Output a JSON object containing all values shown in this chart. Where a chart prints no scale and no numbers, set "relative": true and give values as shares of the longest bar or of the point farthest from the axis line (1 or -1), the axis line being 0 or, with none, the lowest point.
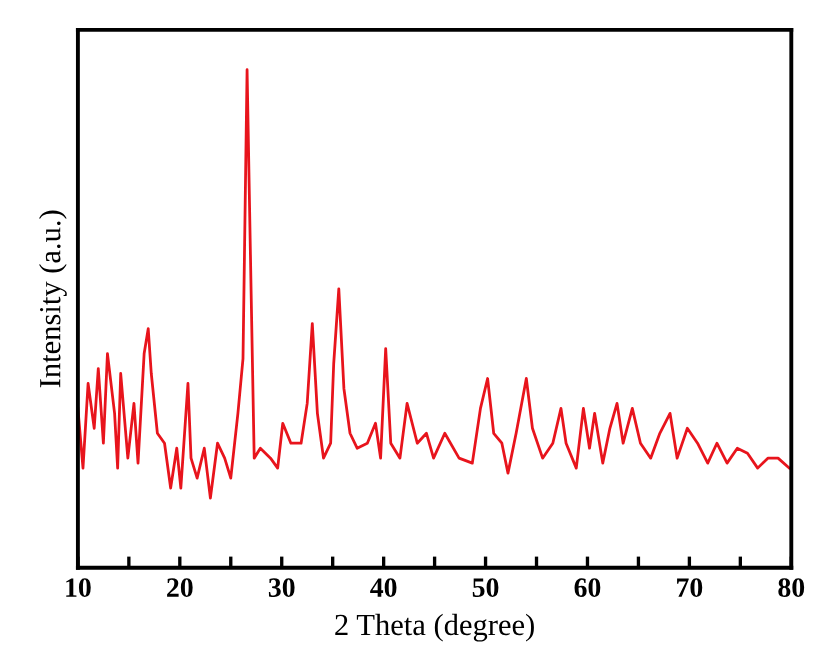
{
  "chart_data": {
    "type": "line",
    "xlabel": "2 Theta (degree)",
    "ylabel": "Intensity (a.u.)",
    "relative": true,
    "xlim": [
      10,
      80
    ],
    "xticks": [
      10,
      {
        "value": 15,
        "label": null
      },
      20,
      {
        "value": 25,
        "label": null
      },
      30,
      {
        "value": 35,
        "label": null
      },
      40,
      {
        "value": 45,
        "label": null
      },
      50,
      {
        "value": 55,
        "label": null
      },
      60,
      {
        "value": 65,
        "label": null
      },
      70,
      {
        "value": 75,
        "label": null
      },
      80
    ],
    "tick_labels": "x",
    "marker": "none",
    "line_style": "solid",
    "series": [
      {
        "color": "#e8141c",
        "x": [
          10,
          10.5,
          11,
          11.6,
          12,
          12.5,
          12.9,
          13.6,
          13.9,
          14.2,
          14.9,
          15.5,
          15.9,
          16.5,
          16.9,
          17.2,
          17.8,
          18.5,
          19.1,
          19.7,
          20.1,
          20.8,
          21.1,
          21.7,
          22.4,
          23.0,
          23.7,
          24.4,
          25.0,
          25.7,
          26.2,
          26.6,
          27.0,
          27.3,
          27.9,
          28.9,
          29.6,
          30.1,
          30.9,
          31.9,
          32.5,
          33.0,
          33.5,
          34.1,
          34.8,
          35.1,
          35.6,
          36.1,
          36.7,
          37.4,
          38.4,
          39.2,
          39.7,
          40.2,
          40.7,
          41.6,
          42.3,
          43.3,
          44.2,
          44.9,
          46.0,
          47.4,
          48.7,
          49.5,
          50.2,
          50.8,
          51.6,
          52.2,
          53.0,
          54.0,
          54.6,
          55.6,
          56.6,
          57.4,
          57.9,
          58.9,
          59.6,
          60.2,
          60.7,
          61.5,
          62.2,
          62.9,
          63.5,
          64.4,
          65.2,
          66.2,
          67.1,
          68.1,
          68.8,
          69.8,
          70.8,
          71.8,
          72.7,
          73.7,
          74.7,
          75.7,
          76.7,
          77.7,
          78.7,
          79.8
        ],
        "values": [
          0.32,
          0.2,
          0.37,
          0.28,
          0.4,
          0.25,
          0.43,
          0.31,
          0.2,
          0.39,
          0.22,
          0.33,
          0.21,
          0.43,
          0.48,
          0.39,
          0.27,
          0.25,
          0.16,
          0.24,
          0.16,
          0.37,
          0.22,
          0.18,
          0.24,
          0.14,
          0.25,
          0.22,
          0.18,
          0.31,
          0.42,
          1.0,
          0.55,
          0.22,
          0.24,
          0.22,
          0.2,
          0.29,
          0.25,
          0.25,
          0.33,
          0.49,
          0.31,
          0.22,
          0.25,
          0.41,
          0.56,
          0.36,
          0.27,
          0.24,
          0.25,
          0.29,
          0.22,
          0.44,
          0.25,
          0.22,
          0.33,
          0.25,
          0.27,
          0.22,
          0.27,
          0.22,
          0.21,
          0.32,
          0.38,
          0.27,
          0.25,
          0.19,
          0.27,
          0.38,
          0.28,
          0.22,
          0.25,
          0.32,
          0.25,
          0.2,
          0.32,
          0.24,
          0.31,
          0.21,
          0.28,
          0.33,
          0.25,
          0.32,
          0.25,
          0.22,
          0.27,
          0.31,
          0.22,
          0.28,
          0.25,
          0.21,
          0.25,
          0.21,
          0.24,
          0.23,
          0.2,
          0.22,
          0.22,
          0.2
        ]
      }
    ]
  }
}
